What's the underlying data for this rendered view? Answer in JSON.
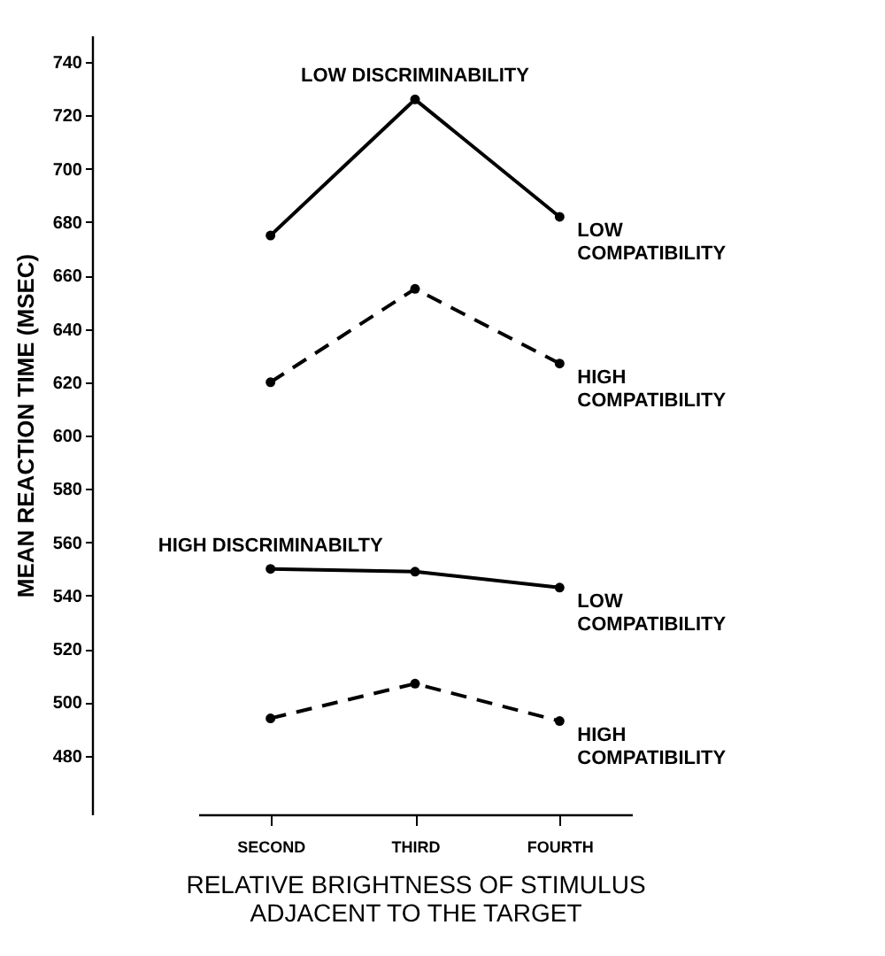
{
  "chart_data": {
    "type": "line",
    "xlabel": "RELATIVE BRIGHTNESS OF STIMULUS\nADJACENT TO THE TARGET",
    "ylabel": "MEAN REACTION TIME (MSEC)",
    "categories": [
      "SECOND",
      "THIRD",
      "FOURTH"
    ],
    "series": [
      {
        "name": "LOW\nCOMPATIBILITY",
        "color": "#000000",
        "line_style": "solid",
        "values": [
          675,
          726,
          682
        ]
      },
      {
        "name": "HIGH\nCOMPATIBILITY",
        "color": "#000000",
        "line_style": "dashed",
        "values": [
          620,
          655,
          627
        ]
      },
      {
        "name": "LOW\nCOMPATIBILITY",
        "color": "#000000",
        "line_style": "solid",
        "values": [
          550,
          549,
          543
        ]
      },
      {
        "name": "HIGH\nCOMPATIBILITY",
        "color": "#000000",
        "line_style": "dashed",
        "values": [
          494,
          507,
          493
        ]
      }
    ],
    "annotations": [
      "LOW DISCRIMINABILITY",
      "HIGH DISCRIMINABILTY"
    ],
    "ylim": [
      458,
      750
    ],
    "yticks": [
      480,
      500,
      520,
      540,
      560,
      580,
      600,
      620,
      640,
      660,
      680,
      700,
      720,
      740
    ],
    "marker": "circle"
  }
}
